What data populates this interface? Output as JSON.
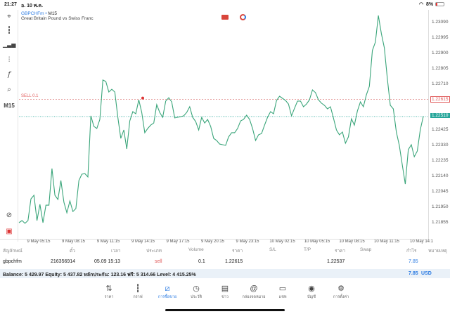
{
  "status_bar": {
    "time": "21:27",
    "date": "อ. 10 พ.ค.",
    "battery": "8%"
  },
  "chart": {
    "symbol": "GBPCHFm",
    "timeframe_sep": "•",
    "timeframe": "M15",
    "description": "Great Britain Pound vs Swiss Franc",
    "order_line_label": "SELL 0.1",
    "order_price_label": "1.22615",
    "current_price_label": "1.22510",
    "price_ticks": [
      "1.23090",
      "1.22995",
      "1.22900",
      "1.22805",
      "1.22710",
      "1.22425",
      "1.22330",
      "1.22235",
      "1.22140",
      "1.22045",
      "1.21950",
      "1.21855"
    ],
    "time_ticks": [
      "9 May 05:15",
      "9 May 08:15",
      "9 May 11:15",
      "9 May 14:15",
      "9 May 17:15",
      "9 May 20:15",
      "9 May 23:15",
      "10 May 02:15",
      "10 May 05:15",
      "10 May 08:15",
      "10 May 11:15",
      "10 May 14:1"
    ],
    "left_toolbar_label": "M15",
    "colors": {
      "line": "#3aa57a",
      "sell": "#e05a5a",
      "current": "#26a69a"
    }
  },
  "chart_data": {
    "type": "line",
    "title": "GBPCHFm M15",
    "ylim": [
      1.2183,
      1.2313
    ],
    "order_price": 1.22615,
    "current_price": 1.2251,
    "values": [
      1.21855,
      1.21868,
      1.21851,
      1.21868,
      1.22002,
      1.22024,
      1.21868,
      1.21968,
      1.21855,
      1.21963,
      1.21963,
      1.22189,
      1.22024,
      1.21998,
      1.22115,
      1.21981,
      1.21916,
      1.21989,
      1.21924,
      1.21942,
      1.22115,
      1.22154,
      1.22158,
      1.22137,
      1.22514,
      1.22449,
      1.22436,
      1.22492,
      1.22735,
      1.22726,
      1.22661,
      1.22678,
      1.22661,
      1.22505,
      1.22375,
      1.22427,
      1.2231,
      1.22483,
      1.2254,
      1.22527,
      1.22613,
      1.22535,
      1.2241,
      1.22436,
      1.22457,
      1.2247,
      1.22583,
      1.22535,
      1.22505,
      1.22605,
      1.22626,
      1.226,
      1.22501,
      1.22505,
      1.22509,
      1.22514,
      1.22535,
      1.2257,
      1.22505,
      1.22479,
      1.22427,
      1.22505,
      1.2247,
      1.22492,
      1.22449,
      1.22375,
      1.22362,
      1.2234,
      1.22336,
      1.22332,
      1.22384,
      1.2241,
      1.2241,
      1.22436,
      1.22483,
      1.22492,
      1.22518,
      1.22492,
      1.22436,
      1.22362,
      1.22397,
      1.22405,
      1.22457,
      1.22505,
      1.2254,
      1.22527,
      1.22609,
      1.22635,
      1.22622,
      1.22609,
      1.22587,
      1.22514,
      1.22561,
      1.22605,
      1.22605,
      1.2257,
      1.22587,
      1.22613,
      1.22674,
      1.22657,
      1.22613,
      1.22592,
      1.22579,
      1.22557,
      1.2257,
      1.22501,
      1.22427,
      1.22397,
      1.22414,
      1.22345,
      1.22384,
      1.22496,
      1.22457,
      1.22544,
      1.226,
      1.2257,
      1.22644,
      1.22696,
      1.22917,
      1.22969,
      1.23133,
      1.23021,
      1.22934,
      1.22743,
      1.22579,
      1.22557,
      1.22414,
      1.22332,
      1.2221,
      1.22093,
      1.22306,
      1.22336,
      1.22262,
      1.22297,
      1.22427,
      1.2251
    ]
  },
  "table": {
    "headers": [
      "สัญลักษณ์",
      "ตั๋ว",
      "เวลา",
      "ประเภท",
      "Volume",
      "ราคา",
      "S/L",
      "T/P",
      "ราคา",
      "Swap",
      "กำไร",
      "หมายเหตุ"
    ],
    "row": {
      "symbol": "gbpchfm",
      "ticket": "216356914",
      "time": "05.09 15:13",
      "type": "sell",
      "volume": "0.1",
      "open_price": "1.22615",
      "current_price": "1.22537",
      "profit": "7.85"
    }
  },
  "balance": {
    "text": "Balance: 5 429.97 Equity: 5 437.82 หลักประกัน: 123.16 ฟรี: 5 314.66 Level: 4 415.25%",
    "profit": "7.85",
    "currency": "USD"
  },
  "nav": [
    {
      "label": "ราคา",
      "icon": "quotes-icon"
    },
    {
      "label": "กราฟ",
      "icon": "chart-icon"
    },
    {
      "label": "การซื้อขาย",
      "icon": "trade-icon"
    },
    {
      "label": "ประวัติ",
      "icon": "history-icon"
    },
    {
      "label": "ข่าว",
      "icon": "news-icon"
    },
    {
      "label": "กล่องจดหมาย",
      "icon": "mailbox-icon"
    },
    {
      "label": "แชท",
      "icon": "chat-icon"
    },
    {
      "label": "บัญชี",
      "icon": "account-icon"
    },
    {
      "label": "การตั้งค่า",
      "icon": "settings-icon"
    }
  ]
}
